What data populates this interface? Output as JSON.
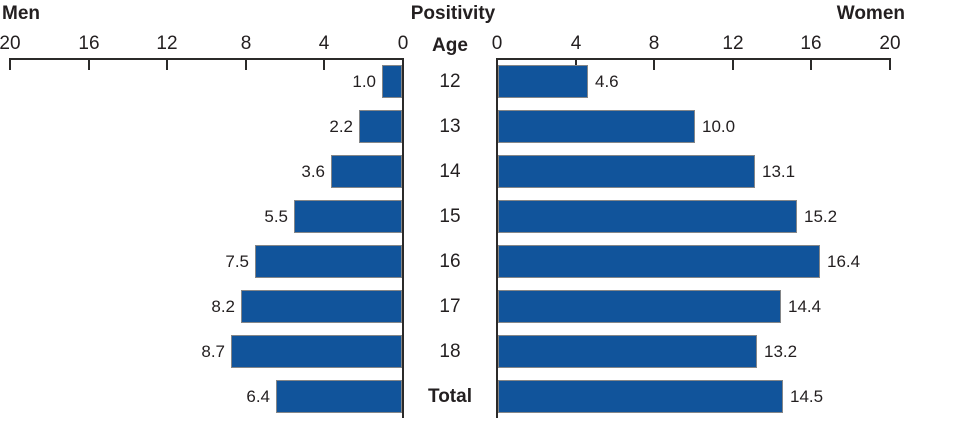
{
  "header": {
    "left_label": "Men",
    "title": "Positivity",
    "right_label": "Women",
    "age_label": "Age"
  },
  "axis": {
    "min": 0,
    "max": 20,
    "tick_interval": 4,
    "ticks": [
      0,
      4,
      8,
      12,
      16,
      20
    ]
  },
  "colors": {
    "bar_fill": "#11549b",
    "bar_border": "#848688",
    "axis": "#2b2a29",
    "text": "#231f20"
  },
  "chart_data": {
    "type": "bar",
    "variant": "horizontal-pyramid",
    "title": "Positivity",
    "center_axis_label": "Age",
    "categories": [
      "12",
      "13",
      "14",
      "15",
      "16",
      "17",
      "18",
      "Total"
    ],
    "series": [
      {
        "name": "Men",
        "side": "left",
        "values": [
          1.0,
          2.2,
          3.6,
          5.5,
          7.5,
          8.2,
          8.7,
          6.4
        ]
      },
      {
        "name": "Women",
        "side": "right",
        "values": [
          4.6,
          10.0,
          13.1,
          15.2,
          16.4,
          14.4,
          13.2,
          14.5
        ]
      }
    ],
    "xlim": [
      0,
      20
    ],
    "tick_labels_left": [
      "20",
      "16",
      "12",
      "8",
      "4",
      "0"
    ],
    "tick_labels_right": [
      "0",
      "4",
      "8",
      "12",
      "16",
      "20"
    ],
    "value_labels": true,
    "value_label_format": "one-decimal",
    "grid": false,
    "legend_position": "none"
  }
}
